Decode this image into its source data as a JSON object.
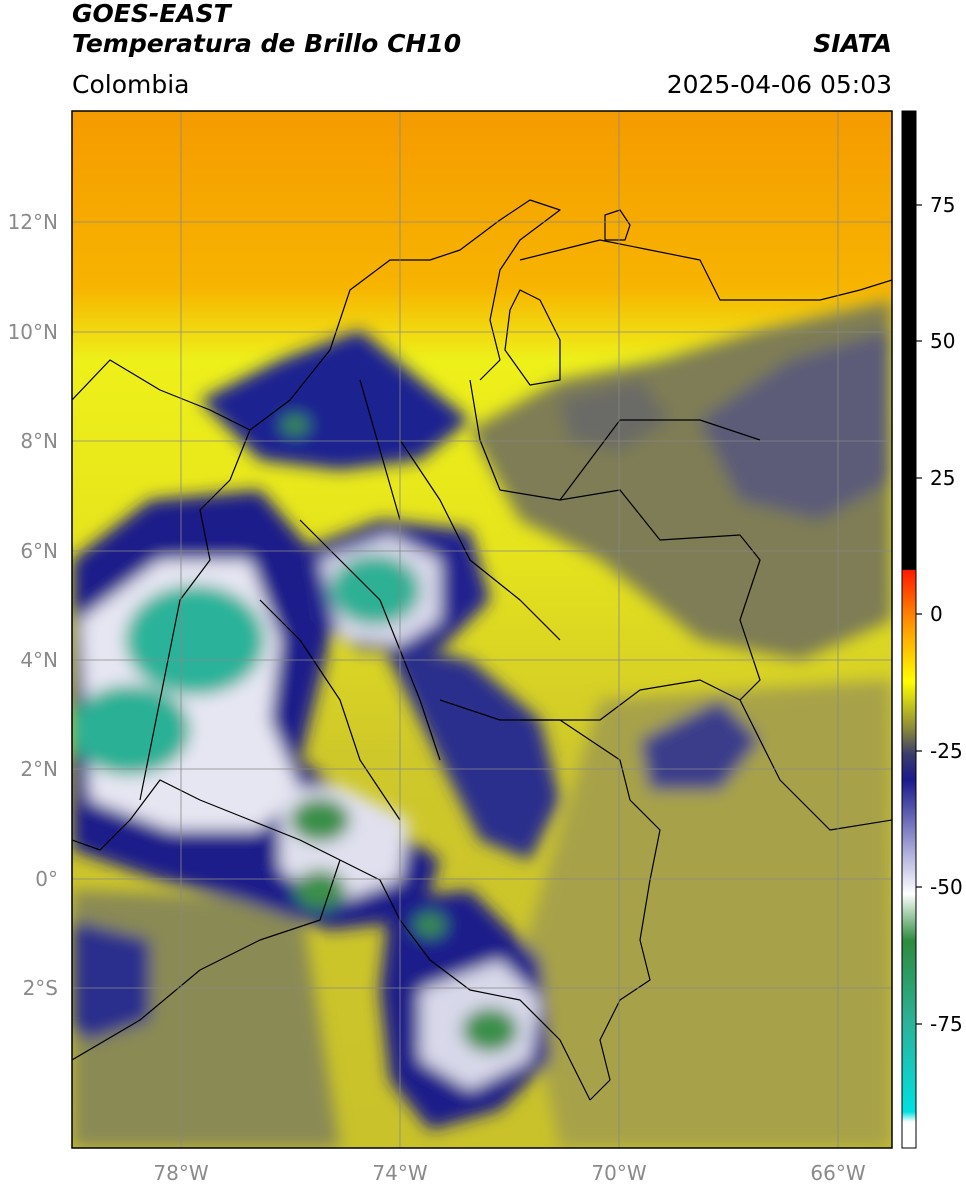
{
  "header": {
    "satellite": "GOES-EAST",
    "product": "Temperatura de Brillo CH10",
    "organization": "SIATA",
    "region": "Colombia",
    "timestamp": "2025-04-06 05:03"
  },
  "map": {
    "lon_range": [
      -79.5,
      -64.5
    ],
    "lat_range": [
      -4.9,
      14.0
    ],
    "lat_ticks": [
      {
        "value": 12,
        "label": "12°N"
      },
      {
        "value": 10,
        "label": "10°N"
      },
      {
        "value": 8,
        "label": "8°N"
      },
      {
        "value": 6,
        "label": "6°N"
      },
      {
        "value": 4,
        "label": "4°N"
      },
      {
        "value": 2,
        "label": "2°N"
      },
      {
        "value": 0,
        "label": "0°"
      },
      {
        "value": -2,
        "label": "2°S"
      }
    ],
    "lon_ticks": [
      {
        "value": -78,
        "label": "78°W"
      },
      {
        "value": -74,
        "label": "74°W"
      },
      {
        "value": -70,
        "label": "70°W"
      },
      {
        "value": -66,
        "label": "66°W"
      }
    ],
    "colors": {
      "warm_orange": "#f59b00",
      "yellow": "#eef01a",
      "olive": "#c9c22a",
      "gray_olive": "#8a8a52",
      "dark_slate": "#55577a",
      "navy": "#1c1f8a",
      "white": "#f4f4f8",
      "green": "#3a8f4a",
      "teal": "#2cb39a",
      "border": "#000000"
    }
  },
  "colorbar": {
    "range": [
      -95,
      90
    ],
    "ticks": [
      {
        "value": 75,
        "label": "75"
      },
      {
        "value": 50,
        "label": "50"
      },
      {
        "value": 25,
        "label": "25"
      },
      {
        "value": 0,
        "label": "0"
      },
      {
        "value": -25,
        "label": "-25"
      },
      {
        "value": -50,
        "label": "-50"
      },
      {
        "value": -75,
        "label": "-75"
      }
    ]
  }
}
